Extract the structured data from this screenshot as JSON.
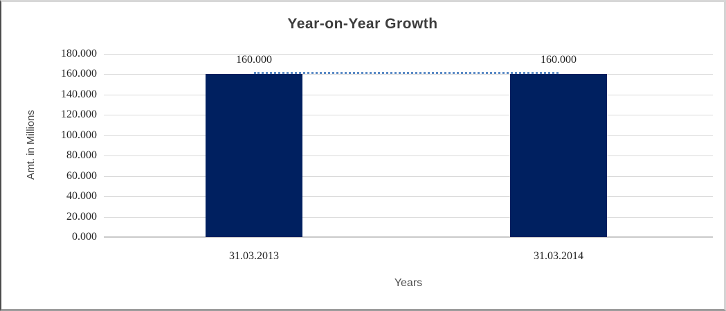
{
  "chart_data": {
    "type": "bar",
    "title": "Year-on-Year Growth",
    "xlabel": "Years",
    "ylabel": "Amt. in Millions",
    "categories": [
      "31.03.2013",
      "31.03.2014"
    ],
    "values": [
      160,
      160
    ],
    "value_labels": [
      "160.000",
      "160.000"
    ],
    "ylim": [
      0,
      180
    ],
    "ytick_step": 20,
    "ytick_labels": [
      "0.000",
      "20.000",
      "40.000",
      "60.000",
      "80.000",
      "100.000",
      "120.000",
      "140.000",
      "160.000",
      "180.000"
    ],
    "grid": "horizontal-on",
    "legend": "none",
    "overlay_line": {
      "style": "dotted",
      "values": [
        160,
        160
      ],
      "color": "#5b8ac5"
    },
    "colors": {
      "bar": "#002060",
      "gridline": "#d9d9d9",
      "axis_line": "#c9c9c9",
      "title_text": "#3d3d3d",
      "tick_text": "#222222",
      "axis_title_text": "#454545"
    }
  }
}
